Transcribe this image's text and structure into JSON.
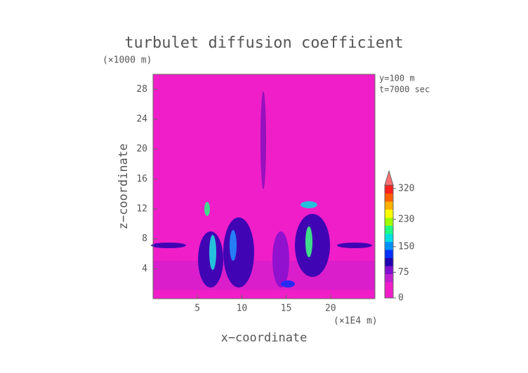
{
  "chart_data": {
    "type": "heatmap",
    "title": "turbulet diffusion coefficient",
    "x_label": "x−coordinate",
    "x_unit": "(×1E4 m)",
    "y_label": "z−coordinate",
    "y_unit": "(×1000 m)",
    "annotations": [
      "y=100 m",
      "t=7000 sec"
    ],
    "xlim": [
      0,
      25
    ],
    "xticks": [
      5,
      10,
      15,
      20
    ],
    "ylim": [
      0,
      30
    ],
    "yticks": [
      4,
      8,
      12,
      16,
      20,
      24,
      28
    ],
    "background_color": "#f01ec8",
    "colorbar": {
      "lim": [
        0,
        330
      ],
      "ticks": [
        0,
        75,
        150,
        230,
        320
      ],
      "colors": [
        "#f01ec8",
        "#f01ec8",
        "#c020d0",
        "#8010d0",
        "#2000b0",
        "#0030ff",
        "#0090ff",
        "#00e0e0",
        "#20ff80",
        "#a0ff00",
        "#ffff00",
        "#ffb000",
        "#ff6000",
        "#ff2020"
      ],
      "extend_color": "#ff7070"
    }
  }
}
